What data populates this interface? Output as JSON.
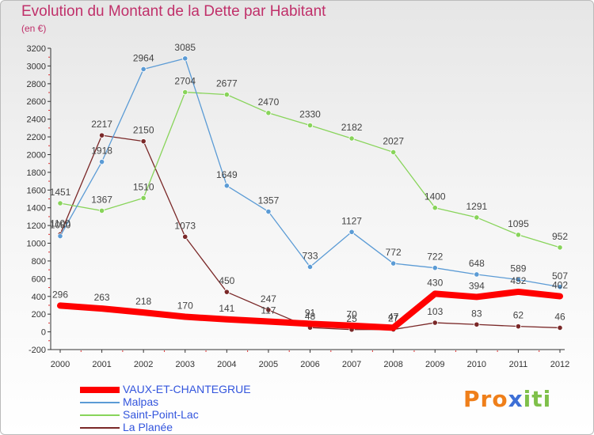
{
  "chart_data": {
    "type": "line",
    "title": "Evolution du Montant de la Dette par Habitant",
    "subtitle": "(en €)",
    "x": [
      "2000",
      "2001",
      "2002",
      "2003",
      "2004",
      "2005",
      "2006",
      "2007",
      "2008",
      "2009",
      "2010",
      "2011",
      "2012"
    ],
    "ylim": [
      -200,
      3200
    ],
    "yticks": [
      -200,
      0,
      200,
      400,
      600,
      800,
      1000,
      1200,
      1400,
      1600,
      1800,
      2000,
      2200,
      2400,
      2600,
      2800,
      3000,
      3200
    ],
    "grid": false,
    "legend_position": "bottom-left",
    "series": [
      {
        "name": "VAUX-ET-CHANTEGRUE",
        "color": "#ff0000",
        "width": 8,
        "values": [
          296,
          263,
          218,
          170,
          141,
          117,
          91,
          70,
          47,
          430,
          394,
          452,
          402
        ]
      },
      {
        "name": "Malpas",
        "color": "#5b9bd5",
        "width": 1.3,
        "values": [
          1080,
          1918,
          2964,
          3085,
          1649,
          1357,
          733,
          1127,
          772,
          722,
          648,
          589,
          507
        ]
      },
      {
        "name": "Saint-Point-Lac",
        "color": "#88d45a",
        "width": 1.3,
        "values": [
          1451,
          1367,
          1510,
          2704,
          2677,
          2470,
          2330,
          2182,
          2027,
          1400,
          1291,
          1095,
          952
        ]
      },
      {
        "name": "La Planée",
        "color": "#7a2828",
        "width": 1.3,
        "values": [
          1100,
          2217,
          2150,
          1073,
          450,
          247,
          48,
          25,
          27,
          103,
          83,
          62,
          46
        ]
      }
    ]
  },
  "logo": {
    "letters": [
      "P",
      "r",
      "o",
      "x",
      "i",
      "t",
      "i"
    ],
    "colors": [
      "#ef7f1a",
      "#ef7f1a",
      "#ef7f1a",
      "#3d6fd6",
      "#7fc04a",
      "#7fc04a",
      "#7fc04a"
    ]
  }
}
